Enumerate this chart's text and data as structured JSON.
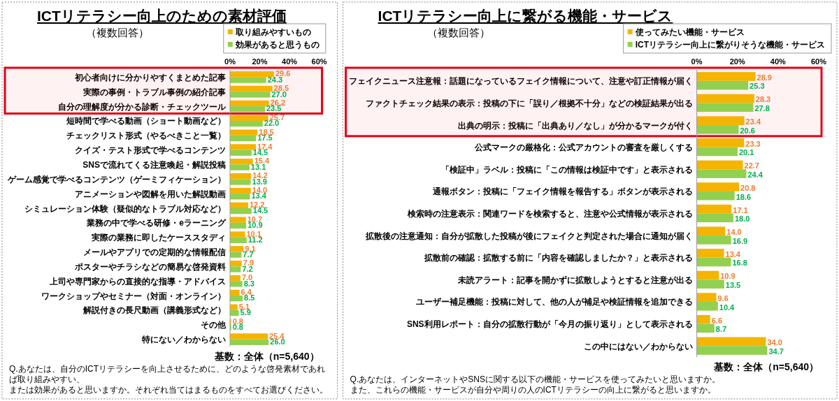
{
  "chart_data": [
    {
      "type": "bar",
      "orientation": "horizontal",
      "title": "ICTリテラシー向上のための素材評価",
      "subtitle": "（複数回答）",
      "categories": [
        "初心者向けに分かりやすくまとめた記事",
        "実際の事例・トラブル事例の紹介記事",
        "自分の理解度が分かる診断・チェックツール",
        "短時間で学べる動画（ショート動画など）",
        "チェックリスト形式（やるべきこと一覧）",
        "クイズ・テスト形式で学べるコンテンツ",
        "SNSで流れてくる注意喚起・解説投稿",
        "ゲーム感覚で学べるコンテンツ（ゲーミフィケーション）",
        "アニメーションや図解を用いた解説動画",
        "シミュレーション体験（疑似的なトラブル対応など）",
        "業務の中で学べる研修・eラーニング",
        "実際の業務に即したケーススタディ",
        "メールやアプリでの定期的な情報配信",
        "ポスターやチラシなどの簡易な啓発資料",
        "上司や専門家からの直接的な指導・アドバイス",
        "ワークショップやセミナー（対面・オンライン）",
        "解説付きの長尺動画（講義形式など）",
        "その他",
        "特にない／わからない"
      ],
      "series": [
        {
          "name": "取り組みやすいもの",
          "color": "#f5b400",
          "values": [
            29.6,
            28.5,
            26.2,
            25.7,
            18.5,
            17.4,
            15.4,
            14.2,
            14.0,
            12.2,
            10.7,
            10.1,
            9.1,
            7.9,
            7.0,
            6.4,
            5.1,
            0.8,
            25.4
          ],
          "value_labels": [
            "29.6",
            "28.5",
            "26.2",
            "25.7",
            "18.5",
            "17.4",
            "15.4",
            "14.2",
            "14.0",
            "12.2",
            "10.7",
            "10.1",
            "9.1",
            "7.9",
            "7.0",
            "6.4",
            "5.1",
            "0.8",
            "25.4"
          ]
        },
        {
          "name": "効果があると思うもの",
          "color": "#92d050",
          "values": [
            24.3,
            27.0,
            23.5,
            22.0,
            17.5,
            14.5,
            13.1,
            13.9,
            13.4,
            14.5,
            10.9,
            11.2,
            7.7,
            7.2,
            8.3,
            8.5,
            5.9,
            0.8,
            26.0
          ],
          "value_labels": [
            "24.3",
            "27.0",
            "23.5",
            "22.0",
            "17.5",
            "14.5",
            "13.1",
            "13.9",
            "13.4",
            "14.5",
            "10.9",
            "11.2",
            "7.7",
            "7.2",
            "8.3",
            "8.5",
            "5.9",
            "0.8",
            "26.0"
          ]
        }
      ],
      "xlim": [
        0,
        60
      ],
      "xticks": [
        {
          "value": 0,
          "label": "0%"
        },
        {
          "value": 20,
          "label": "20%"
        },
        {
          "value": 40,
          "label": "40%"
        },
        {
          "value": 60,
          "label": "60%"
        }
      ],
      "legend": "top",
      "grid": false,
      "bands": [
        {
          "axis": "y",
          "from": "初心者向けに分かりやすくまとめた記事",
          "to": "自分の理解度が分かる診断・チェックツール",
          "color": "#e60012"
        }
      ],
      "annotations": [
        "基数：全体（n=5,640）",
        "Q.あなたは、自分のICTリテラシーを向上させるために、どのような啓発素材であれば取り組みやすい、",
        "または効果があると思いますか。それぞれ当てはまるものをすべてお選びください。"
      ]
    },
    {
      "type": "bar",
      "orientation": "horizontal",
      "title": "ICTリテラシー向上に繋がる機能・サービス",
      "subtitle": "（複数回答）",
      "categories": [
        "フェイクニュース注意報：話題になっているフェイク情報について、注意や訂正情報が届く",
        "ファクトチェック結果の表示：投稿の下に「誤り／根拠不十分」などの検証結果が出る",
        "出典の明示：投稿に「出典あり／なし」が分かるマークが付く",
        "公式マークの厳格化：公式アカウントの審査を厳しくする",
        "「検証中」ラベル：投稿に「この情報は検証中です」と表示される",
        "通報ボタン：投稿に「フェイク情報を報告する」ボタンが表示される",
        "検索時の注意表示：関連ワードを検索すると、注意や公式情報が表示される",
        "拡散後の注意通知：自分が拡散した投稿が後にフェイクと判定された場合に通知が届く",
        "拡散前の確認：拡散する前に「内容を確認しましたか？」と表示される",
        "未読アラート：記事を開かずに拡散しようとすると注意が出る",
        "ユーザー補足機能：投稿に対して、他の人が補足や検証情報を追加できる",
        "SNS利用レポート：自分の拡散行動が「今月の振り返り」として表示される",
        "この中にはない／わからない"
      ],
      "series": [
        {
          "name": "使ってみたい機能・サービス",
          "color": "#f5b400",
          "values": [
            28.9,
            28.3,
            23.4,
            23.3,
            22.7,
            20.8,
            17.1,
            14.0,
            13.4,
            10.9,
            9.6,
            6.6,
            34.0
          ],
          "value_labels": [
            "28.9",
            "28.3",
            "23.4",
            "23.3",
            "22.7",
            "20.8",
            "17.1",
            "14.0",
            "13.4",
            "10.9",
            "9.6",
            "6.6",
            "34.0"
          ]
        },
        {
          "name": "ICTリテラシー向上に繋がりそうな機能・サービス",
          "color": "#92d050",
          "values": [
            25.3,
            27.8,
            20.6,
            20.1,
            24.4,
            18.6,
            18.0,
            16.9,
            16.8,
            13.5,
            10.4,
            8.7,
            34.7
          ],
          "value_labels": [
            "25.3",
            "27.8",
            "20.6",
            "20.1",
            "24.4",
            "18.6",
            "18.0",
            "16.9",
            "16.8",
            "13.5",
            "10.4",
            "8.7",
            "34.7"
          ]
        }
      ],
      "xlim": [
        0,
        60
      ],
      "xticks": [
        {
          "value": 0,
          "label": "0%"
        },
        {
          "value": 20,
          "label": "20%"
        },
        {
          "value": 40,
          "label": "40%"
        },
        {
          "value": 60,
          "label": "60%"
        }
      ],
      "legend": "top",
      "grid": false,
      "bands": [
        {
          "axis": "y",
          "from": "フェイクニュース注意報：話題になっているフェイク情報について、注意や訂正情報が届く",
          "to": "出典の明示：投稿に「出典あり／なし」が分かるマークが付く",
          "color": "#e60012"
        }
      ],
      "annotations": [
        "基数：全体（n=5,640）",
        "Q.あなたは、インターネットやSNSに関する以下の機能・サービスを使ってみたいと思いますか。",
        "また、これらの機能・サービスが自分や周りの人のICTリテラシーの向上に繋がると思いますか。"
      ]
    }
  ]
}
